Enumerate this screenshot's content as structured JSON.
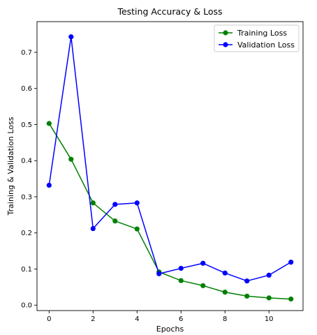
{
  "chart_data": {
    "type": "line",
    "title": "Testing Accuracy & Loss",
    "xlabel": "Epochs",
    "ylabel": "Training & Validation Loss",
    "x": [
      0,
      1,
      2,
      3,
      4,
      5,
      6,
      7,
      8,
      9,
      10,
      11
    ],
    "xlim": [
      -0.55,
      11.55
    ],
    "ylim": [
      -0.015,
      0.785
    ],
    "xticks": [
      0,
      2,
      4,
      6,
      8,
      10
    ],
    "yticks": [
      0.0,
      0.1,
      0.2,
      0.3,
      0.4,
      0.5,
      0.6,
      0.7
    ],
    "grid": false,
    "legend_position": "top-right",
    "series": [
      {
        "name": "Training Loss",
        "color": "#008000",
        "values": [
          0.503,
          0.404,
          0.283,
          0.233,
          0.211,
          0.092,
          0.068,
          0.054,
          0.036,
          0.025,
          0.02,
          0.017
        ]
      },
      {
        "name": "Validation Loss",
        "color": "#0000ff",
        "values": [
          0.332,
          0.743,
          0.212,
          0.279,
          0.283,
          0.087,
          0.102,
          0.116,
          0.089,
          0.067,
          0.083,
          0.119
        ]
      }
    ]
  }
}
